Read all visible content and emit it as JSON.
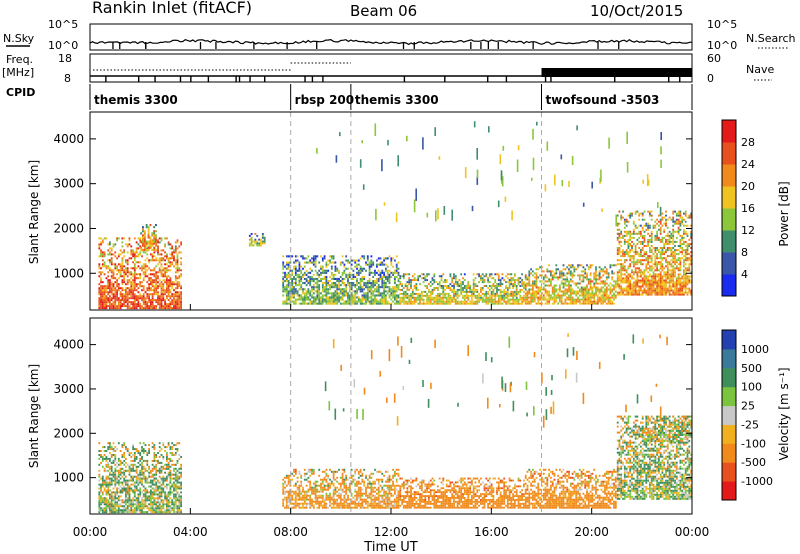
{
  "header": {
    "station": "Rankin Inlet (fitACF)",
    "beam": "Beam 06",
    "date": "10/Oct/2015"
  },
  "panels": {
    "nsky_label": "N.Sky",
    "nsky_ticks": [
      "10^5",
      "10^0"
    ],
    "nsearch_label": "N.Search",
    "nsearch_ticks": [
      "10^5",
      "10^0"
    ],
    "freq_label": "Freq.",
    "freq_unit": "[MHz]",
    "freq_ticks": [
      "18",
      "8"
    ],
    "nave_label": "Nave",
    "nave_ticks": [
      "60",
      "0"
    ],
    "cpid_label": "CPID"
  },
  "cpid_modes": [
    {
      "name": "themis 3300",
      "start": "00:00"
    },
    {
      "name": "rbsp 200",
      "start": "08:00"
    },
    {
      "name": "themis 3300",
      "start": "10:24"
    },
    {
      "name": "twofsound -3503",
      "start": "18:00"
    }
  ],
  "x_axis": {
    "label": "Time UT",
    "ticks": [
      "00:00",
      "04:00",
      "08:00",
      "12:00",
      "16:00",
      "20:00",
      "00:00"
    ],
    "range_hours": [
      0,
      24
    ]
  },
  "y_axis": {
    "label": "Slant Range [km]",
    "ticks": [
      "1000",
      "2000",
      "3000",
      "4000"
    ],
    "range_km": [
      180,
      4600
    ]
  },
  "power_colorbar": {
    "label": "Power [dB]",
    "ticks": [
      "4",
      "8",
      "12",
      "16",
      "20",
      "24",
      "28"
    ],
    "colors": [
      "#1a2bf0",
      "#3a56a8",
      "#3f8f6d",
      "#8cc63a",
      "#f0c420",
      "#f08a1c",
      "#e8501e",
      "#e41a1a"
    ]
  },
  "velocity_colorbar": {
    "label": "Velocity [m s⁻¹]",
    "ticks": [
      "1000",
      "500",
      "100",
      "25",
      "-25",
      "-100",
      "-500",
      "-1000"
    ],
    "colors": [
      "#2340b0",
      "#3a7a9a",
      "#3f8f5d",
      "#7bc440",
      "#c8c8c8",
      "#f0b020",
      "#f08a1c",
      "#e8501e",
      "#e41a1a"
    ]
  },
  "chart_data": {
    "type": "heatmap",
    "title": "Rankin Inlet (fitACF) Beam 06 10/Oct/2015",
    "xlabel": "Time UT",
    "ylabel": "Slant Range [km]",
    "xlim": [
      "00:00",
      "24:00"
    ],
    "ylim": [
      180,
      4600
    ],
    "series": [
      {
        "name": "Power [dB]",
        "regions": [
          {
            "t_start": "00:20",
            "t_end": "03:40",
            "range_km": [
              200,
              1800
            ],
            "value_db": 26
          },
          {
            "t_start": "02:00",
            "t_end": "02:40",
            "range_km": [
              1500,
              2100
            ],
            "value_db": 22
          },
          {
            "t_start": "06:20",
            "t_end": "07:00",
            "range_km": [
              1600,
              1900
            ],
            "value_db": 16
          },
          {
            "t_start": "07:40",
            "t_end": "12:20",
            "range_km": [
              300,
              1400
            ],
            "value_db": 14
          },
          {
            "t_start": "12:20",
            "t_end": "17:20",
            "range_km": [
              300,
              1000
            ],
            "value_db": 18
          },
          {
            "t_start": "17:20",
            "t_end": "21:00",
            "range_km": [
              300,
              1200
            ],
            "value_db": 20
          },
          {
            "t_start": "21:00",
            "t_end": "24:00",
            "range_km": [
              500,
              2400
            ],
            "value_db": 22
          }
        ]
      },
      {
        "name": "Velocity [m s⁻¹]",
        "regions": [
          {
            "t_start": "00:20",
            "t_end": "03:40",
            "range_km": [
              200,
              1800
            ],
            "value_ms": 60
          },
          {
            "t_start": "07:40",
            "t_end": "12:20",
            "range_km": [
              300,
              1200
            ],
            "value_ms": -150
          },
          {
            "t_start": "12:20",
            "t_end": "17:20",
            "range_km": [
              300,
              1000
            ],
            "value_ms": -300
          },
          {
            "t_start": "17:20",
            "t_end": "21:00",
            "range_km": [
              300,
              1200
            ],
            "value_ms": -250
          },
          {
            "t_start": "21:00",
            "t_end": "24:00",
            "range_km": [
              500,
              2400
            ],
            "value_ms": 60
          },
          {
            "t_start": "22:00",
            "t_end": "24:00",
            "range_km": [
              1800,
              2400
            ],
            "value_ms": 0
          }
        ]
      }
    ],
    "dashed_vertical_lines": [
      "08:00",
      "10:24",
      "18:00"
    ],
    "grid": false
  }
}
